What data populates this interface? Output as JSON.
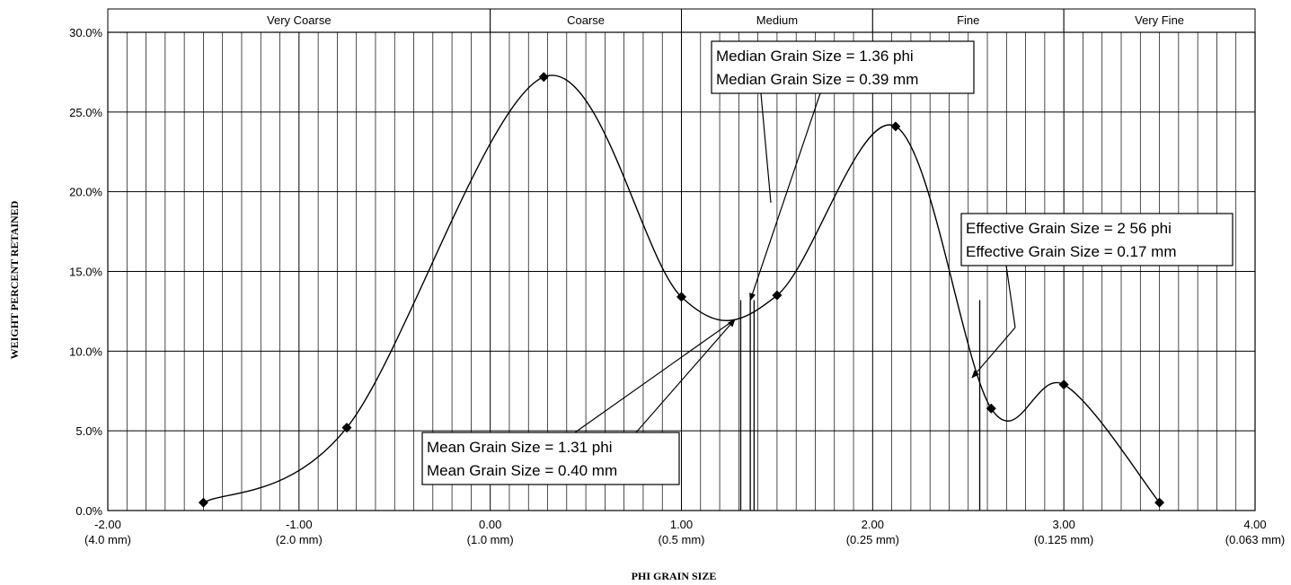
{
  "chart_data": {
    "type": "scatter",
    "xlabel": "PHI GRAIN SIZE",
    "ylabel": "WEIGHT PERCENT RETAINED",
    "xlim": [
      -2.0,
      4.0
    ],
    "ylim": [
      0,
      30
    ],
    "grid": true,
    "y_ticks": [
      {
        "value": 0,
        "label": "0.0%"
      },
      {
        "value": 5,
        "label": "5.0%"
      },
      {
        "value": 10,
        "label": "10.0%"
      },
      {
        "value": 15,
        "label": "15.0%"
      },
      {
        "value": 20,
        "label": "20.0%"
      },
      {
        "value": 25,
        "label": "25.0%"
      },
      {
        "value": 30,
        "label": "30.0%"
      }
    ],
    "x_ticks": [
      {
        "value": -2.0,
        "label": "-2.00",
        "sublabel": "(4.0 mm)"
      },
      {
        "value": -1.0,
        "label": "-1.00",
        "sublabel": "(2.0 mm)"
      },
      {
        "value": 0.0,
        "label": "0.00",
        "sublabel": "(1.0 mm)"
      },
      {
        "value": 1.0,
        "label": "1.00",
        "sublabel": "(0.5 mm)"
      },
      {
        "value": 2.0,
        "label": "2.00",
        "sublabel": "(0.25 mm)"
      },
      {
        "value": 3.0,
        "label": "3.00",
        "sublabel": "(0.125 mm)"
      },
      {
        "value": 4.0,
        "label": "4.00",
        "sublabel": "(0.063 mm)"
      }
    ],
    "size_classes": [
      {
        "label": "Very Coarse",
        "from": -2.0,
        "to": 0.0
      },
      {
        "label": "Coarse",
        "from": 0.0,
        "to": 1.0
      },
      {
        "label": "Medium",
        "from": 1.0,
        "to": 2.0
      },
      {
        "label": "Fine",
        "from": 2.0,
        "to": 3.0
      },
      {
        "label": "Very Fine",
        "from": 3.0,
        "to": 4.0
      }
    ],
    "series": [
      {
        "x": [
          -1.5,
          -0.75,
          0.28,
          1.0,
          1.5,
          2.12,
          2.62,
          3.0,
          3.5
        ],
        "y": [
          0.5,
          5.2,
          27.2,
          13.4,
          13.5,
          24.1,
          6.4,
          7.9,
          0.5
        ]
      }
    ],
    "markers": [
      1.31,
      1.36,
      1.38,
      2.56
    ],
    "annotations": [
      {
        "lines": [
          "Median Grain Size = 1.36 phi",
          "Median Grain Size = 0.39 mm"
        ],
        "target": {
          "x": 1.36,
          "y": 12.8
        }
      },
      {
        "lines": [
          "Mean Grain Size = 1.31 phi",
          "Mean Grain Size = 0.40 mm"
        ],
        "target": {
          "x": 1.31,
          "y": 12.0
        }
      },
      {
        "lines": [
          "Effective Grain Size = 2 56 phi",
          "Effective Grain Size = 0.17 mm"
        ],
        "target": {
          "x": 2.56,
          "y": 8.5
        }
      }
    ]
  }
}
